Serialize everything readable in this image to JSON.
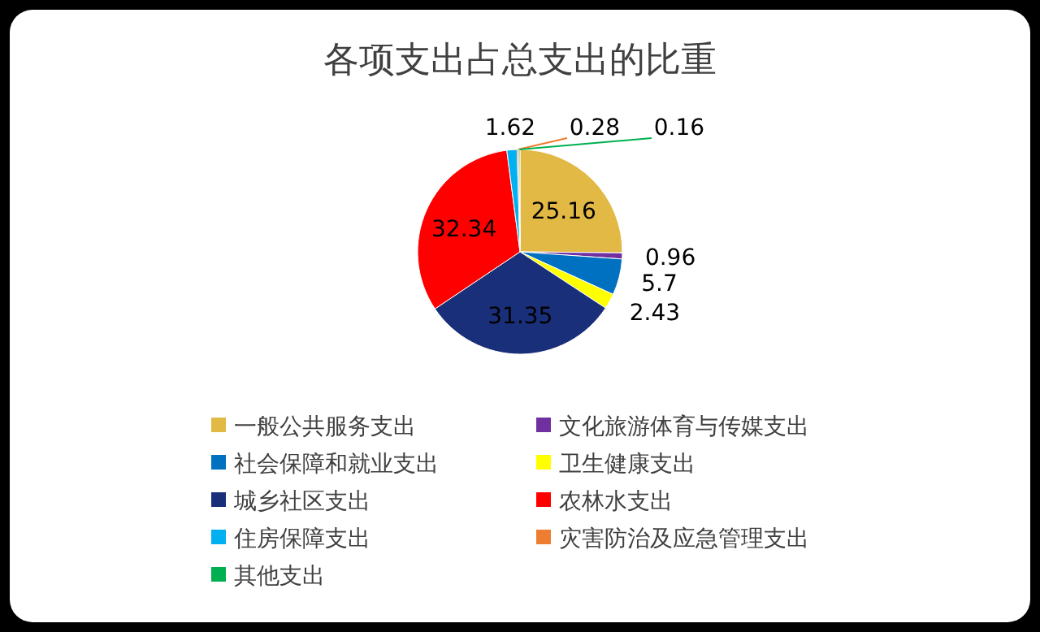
{
  "chart_data": {
    "type": "pie",
    "title": "各项支出占总支出的比重",
    "categories": [
      "一般公共服务支出",
      "文化旅游体育与传媒支出",
      "社会保障和就业支出",
      "卫生健康支出",
      "城乡社区支出",
      "农林水支出",
      "住房保障支出",
      "灾害防治及应急管理支出",
      "其他支出"
    ],
    "values": [
      25.16,
      0.96,
      5.7,
      2.43,
      31.35,
      32.34,
      1.62,
      0.28,
      0.16
    ],
    "colors": [
      "#e2b944",
      "#7030a0",
      "#0070c0",
      "#ffff00",
      "#1a2f7a",
      "#ff0000",
      "#00b0f0",
      "#ed7d31",
      "#00b050"
    ],
    "data_labels": true,
    "legend": "bottom"
  }
}
